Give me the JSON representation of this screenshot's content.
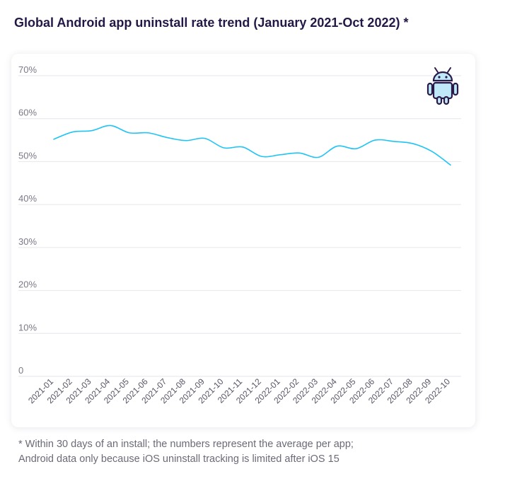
{
  "title": "Global Android app uninstall rate trend (January 2021-Oct 2022) *",
  "footnote": {
    "line1": "* Within 30 days of an install; the numbers represent the average per app;",
    "line2": "Android data only because iOS uninstall tracking is limited after iOS 15"
  },
  "colors": {
    "line": "#1fc4f4",
    "title": "#231846",
    "icon_outline": "#2a1a4a",
    "icon_fill": "#bfe9f8"
  },
  "icon": "android-robot-icon",
  "chart_data": {
    "type": "line",
    "title": "",
    "xlabel": "",
    "ylabel": "",
    "ylim": [
      0,
      70
    ],
    "yticks": [
      0,
      10,
      20,
      30,
      40,
      50,
      60,
      70
    ],
    "ytick_labels": [
      "0",
      "10%",
      "20%",
      "30%",
      "40%",
      "50%",
      "60%",
      "70%"
    ],
    "grid": true,
    "legend": "none",
    "categories": [
      "2021-01",
      "2021-02",
      "2021-03",
      "2021-04",
      "2021-05",
      "2021-06",
      "2021-07",
      "2021-08",
      "2021-09",
      "2021-10",
      "2021-11",
      "2021-12",
      "2022-01",
      "2022-02",
      "2022-03",
      "2022-04",
      "2022-05",
      "2022-06",
      "2022-07",
      "2022-08",
      "2022-09",
      "2022-10"
    ],
    "series": [
      {
        "values": [
          55.2,
          56.9,
          57.2,
          58.4,
          56.7,
          56.7,
          55.6,
          54.9,
          55.4,
          53.2,
          53.4,
          51.2,
          51.6,
          52.0,
          51.0,
          53.6,
          53.0,
          55.0,
          54.7,
          54.2,
          52.4,
          49.2
        ]
      }
    ]
  }
}
